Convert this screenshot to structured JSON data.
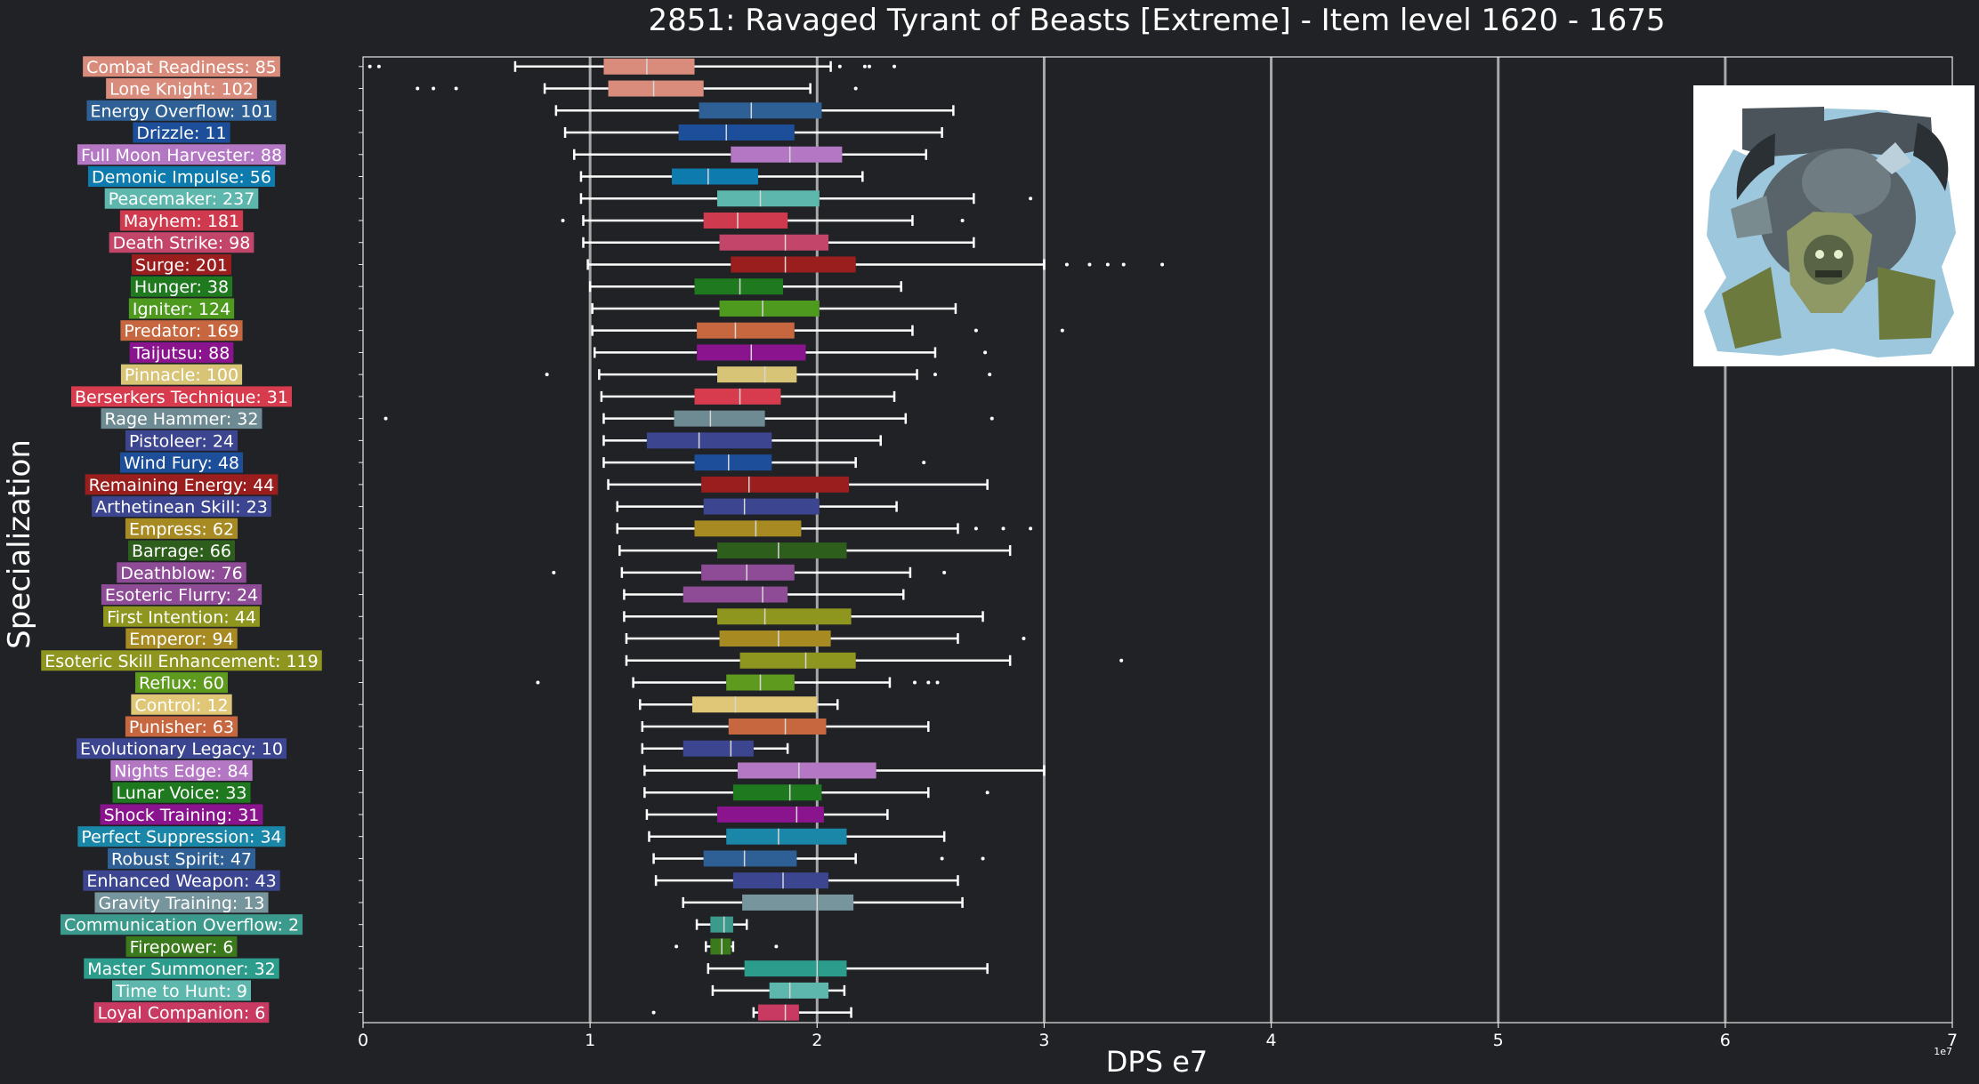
{
  "chart_data": {
    "type": "boxplot",
    "orientation": "horizontal",
    "title": "2851: Ravaged Tyrant of Beasts [Extreme] - Item level 1620 - 1675",
    "xlabel": "DPS e7",
    "ylabel": "Specialization",
    "x_offset_label": "1e7",
    "xlim": [
      0,
      7
    ],
    "xticks": [
      "0",
      "1",
      "2",
      "3",
      "4",
      "5",
      "6",
      "7"
    ],
    "grid": "vertical",
    "boss_icon": "tyrant-boss-portrait-icon",
    "categories": [
      {
        "label": "Combat Readiness: 85",
        "color": "#d98c7c",
        "whislo": 0.67,
        "q1": 1.06,
        "med": 1.25,
        "q3": 1.46,
        "whishi": 2.06,
        "fliers": [
          0.03,
          0.07,
          2.1,
          2.21,
          2.23,
          2.34
        ]
      },
      {
        "label": "Lone Knight: 102",
        "color": "#d98c7c",
        "whislo": 0.8,
        "q1": 1.08,
        "med": 1.28,
        "q3": 1.5,
        "whishi": 1.97,
        "fliers": [
          0.24,
          0.31,
          0.41,
          2.17
        ]
      },
      {
        "label": "Energy Overflow: 101",
        "color": "#2e5f95",
        "whislo": 0.85,
        "q1": 1.48,
        "med": 1.71,
        "q3": 2.02,
        "whishi": 2.6,
        "fliers": []
      },
      {
        "label": "Drizzle: 11",
        "color": "#1c4e9a",
        "whislo": 0.89,
        "q1": 1.39,
        "med": 1.6,
        "q3": 1.9,
        "whishi": 2.55,
        "fliers": []
      },
      {
        "label": "Full Moon Harvester: 88",
        "color": "#b477c4",
        "whislo": 0.93,
        "q1": 1.62,
        "med": 1.88,
        "q3": 2.11,
        "whishi": 2.48,
        "fliers": []
      },
      {
        "label": "Demonic Impulse: 56",
        "color": "#0d7bad",
        "whislo": 0.96,
        "q1": 1.36,
        "med": 1.52,
        "q3": 1.74,
        "whishi": 2.2,
        "fliers": []
      },
      {
        "label": "Peacemaker: 237",
        "color": "#5db7ad",
        "whislo": 0.96,
        "q1": 1.56,
        "med": 1.75,
        "q3": 2.01,
        "whishi": 2.69,
        "fliers": [
          2.94
        ]
      },
      {
        "label": "Mayhem: 181",
        "color": "#cf3a4e",
        "whislo": 0.97,
        "q1": 1.5,
        "med": 1.65,
        "q3": 1.87,
        "whishi": 2.42,
        "fliers": [
          0.88,
          2.64
        ]
      },
      {
        "label": "Death Strike: 98",
        "color": "#c4456a",
        "whislo": 0.97,
        "q1": 1.57,
        "med": 1.86,
        "q3": 2.05,
        "whishi": 2.69,
        "fliers": []
      },
      {
        "label": "Surge: 201",
        "color": "#9b1e1e",
        "whislo": 0.99,
        "q1": 1.62,
        "med": 1.86,
        "q3": 2.17,
        "whishi": 3.0,
        "fliers": [
          3.1,
          3.2,
          3.28,
          3.35,
          3.52
        ]
      },
      {
        "label": "Hunger: 38",
        "color": "#1f7a1f",
        "whislo": 1.0,
        "q1": 1.46,
        "med": 1.66,
        "q3": 1.85,
        "whishi": 2.37,
        "fliers": []
      },
      {
        "label": "Igniter: 124",
        "color": "#4e9a1e",
        "whislo": 1.01,
        "q1": 1.57,
        "med": 1.76,
        "q3": 2.01,
        "whishi": 2.61,
        "fliers": []
      },
      {
        "label": "Predator: 169",
        "color": "#c6673f",
        "whislo": 1.01,
        "q1": 1.47,
        "med": 1.64,
        "q3": 1.9,
        "whishi": 2.42,
        "fliers": [
          2.7,
          3.08
        ]
      },
      {
        "label": "Taijutsu: 88",
        "color": "#8a138e",
        "whislo": 1.02,
        "q1": 1.47,
        "med": 1.71,
        "q3": 1.95,
        "whishi": 2.52,
        "fliers": [
          2.74
        ]
      },
      {
        "label": "Pinnacle: 100",
        "color": "#d8c477",
        "whislo": 1.04,
        "q1": 1.56,
        "med": 1.77,
        "q3": 1.91,
        "whishi": 2.44,
        "fliers": [
          0.81,
          2.52,
          2.76
        ]
      },
      {
        "label": "Berserkers Technique: 31",
        "color": "#d63b4e",
        "whislo": 1.05,
        "q1": 1.46,
        "med": 1.66,
        "q3": 1.84,
        "whishi": 2.34,
        "fliers": []
      },
      {
        "label": "Rage Hammer: 32",
        "color": "#6e8a92",
        "whislo": 1.06,
        "q1": 1.37,
        "med": 1.53,
        "q3": 1.77,
        "whishi": 2.39,
        "fliers": [
          0.1,
          2.77
        ]
      },
      {
        "label": "Pistoleer: 24",
        "color": "#3c4590",
        "whislo": 1.06,
        "q1": 1.25,
        "med": 1.48,
        "q3": 1.8,
        "whishi": 2.28,
        "fliers": []
      },
      {
        "label": "Wind Fury: 48",
        "color": "#1c4e9a",
        "whislo": 1.06,
        "q1": 1.46,
        "med": 1.61,
        "q3": 1.8,
        "whishi": 2.17,
        "fliers": [
          2.47
        ]
      },
      {
        "label": "Remaining Energy: 44",
        "color": "#9b1e1e",
        "whislo": 1.08,
        "q1": 1.49,
        "med": 1.7,
        "q3": 2.14,
        "whishi": 2.75,
        "fliers": []
      },
      {
        "label": "Arthetinean Skill: 23",
        "color": "#3c4590",
        "whislo": 1.12,
        "q1": 1.5,
        "med": 1.68,
        "q3": 2.01,
        "whishi": 2.35,
        "fliers": []
      },
      {
        "label": "Empress: 62",
        "color": "#a88a22",
        "whislo": 1.12,
        "q1": 1.46,
        "med": 1.73,
        "q3": 1.93,
        "whishi": 2.62,
        "fliers": [
          2.7,
          2.82,
          2.94
        ]
      },
      {
        "label": "Barrage: 66",
        "color": "#2d5e1c",
        "whislo": 1.13,
        "q1": 1.56,
        "med": 1.83,
        "q3": 2.13,
        "whishi": 2.85,
        "fliers": []
      },
      {
        "label": "Deathblow: 76",
        "color": "#8e4b96",
        "whislo": 1.14,
        "q1": 1.49,
        "med": 1.69,
        "q3": 1.9,
        "whishi": 2.41,
        "fliers": [
          0.84,
          2.56
        ]
      },
      {
        "label": "Esoteric Flurry: 24",
        "color": "#8e4b96",
        "whislo": 1.15,
        "q1": 1.41,
        "med": 1.76,
        "q3": 1.87,
        "whishi": 2.38,
        "fliers": []
      },
      {
        "label": "First Intention: 44",
        "color": "#8e961f",
        "whislo": 1.15,
        "q1": 1.56,
        "med": 1.77,
        "q3": 2.15,
        "whishi": 2.73,
        "fliers": []
      },
      {
        "label": "Emperor: 94",
        "color": "#a88a22",
        "whislo": 1.16,
        "q1": 1.57,
        "med": 1.83,
        "q3": 2.06,
        "whishi": 2.62,
        "fliers": [
          2.91
        ]
      },
      {
        "label": "Esoteric Skill Enhancement: 119",
        "color": "#8e961f",
        "whislo": 1.16,
        "q1": 1.66,
        "med": 1.95,
        "q3": 2.17,
        "whishi": 2.85,
        "fliers": [
          3.34
        ]
      },
      {
        "label": "Reflux: 60",
        "color": "#5e9a1e",
        "whislo": 1.19,
        "q1": 1.6,
        "med": 1.75,
        "q3": 1.9,
        "whishi": 2.32,
        "fliers": [
          0.77,
          2.43,
          2.49,
          2.53
        ]
      },
      {
        "label": "Control: 12",
        "color": "#e0c777",
        "whislo": 1.22,
        "q1": 1.45,
        "med": 1.64,
        "q3": 2.0,
        "whishi": 2.09,
        "fliers": []
      },
      {
        "label": "Punisher: 63",
        "color": "#c6673f",
        "whislo": 1.23,
        "q1": 1.61,
        "med": 1.86,
        "q3": 2.04,
        "whishi": 2.49,
        "fliers": []
      },
      {
        "label": "Evolutionary Legacy: 10",
        "color": "#3c4590",
        "whislo": 1.23,
        "q1": 1.41,
        "med": 1.62,
        "q3": 1.72,
        "whishi": 1.87,
        "fliers": []
      },
      {
        "label": "Nights Edge: 84",
        "color": "#b477c4",
        "whislo": 1.24,
        "q1": 1.65,
        "med": 1.92,
        "q3": 2.26,
        "whishi": 3.0,
        "fliers": []
      },
      {
        "label": "Lunar Voice: 33",
        "color": "#1f7a1f",
        "whislo": 1.24,
        "q1": 1.63,
        "med": 1.88,
        "q3": 2.02,
        "whishi": 2.49,
        "fliers": [
          2.75
        ]
      },
      {
        "label": "Shock Training: 31",
        "color": "#8a138e",
        "whislo": 1.25,
        "q1": 1.56,
        "med": 1.91,
        "q3": 2.03,
        "whishi": 2.31,
        "fliers": []
      },
      {
        "label": "Perfect Suppression: 34",
        "color": "#1a86a8",
        "whislo": 1.26,
        "q1": 1.6,
        "med": 1.83,
        "q3": 2.13,
        "whishi": 2.56,
        "fliers": []
      },
      {
        "label": "Robust Spirit: 47",
        "color": "#2e5f95",
        "whislo": 1.28,
        "q1": 1.5,
        "med": 1.68,
        "q3": 1.91,
        "whishi": 2.17,
        "fliers": [
          2.55,
          2.73
        ]
      },
      {
        "label": "Enhanced Weapon: 43",
        "color": "#3c4590",
        "whislo": 1.29,
        "q1": 1.63,
        "med": 1.85,
        "q3": 2.05,
        "whishi": 2.62,
        "fliers": []
      },
      {
        "label": "Gravity Training: 13",
        "color": "#77959c",
        "whislo": 1.41,
        "q1": 1.67,
        "med": 2.0,
        "q3": 2.16,
        "whishi": 2.64,
        "fliers": []
      },
      {
        "label": "Communication Overflow: 2",
        "color": "#3b9a8c",
        "whislo": 1.47,
        "q1": 1.53,
        "med": 1.59,
        "q3": 1.63,
        "whishi": 1.69,
        "fliers": []
      },
      {
        "label": "Firepower: 6",
        "color": "#3b7a1c",
        "whislo": 1.51,
        "q1": 1.53,
        "med": 1.58,
        "q3": 1.62,
        "whishi": 1.63,
        "fliers": [
          1.38,
          1.82
        ]
      },
      {
        "label": "Master Summoner: 32",
        "color": "#2c9c8c",
        "whislo": 1.52,
        "q1": 1.68,
        "med": 2.0,
        "q3": 2.13,
        "whishi": 2.75,
        "fliers": []
      },
      {
        "label": "Time to Hunt: 9",
        "color": "#5db7ad",
        "whislo": 1.54,
        "q1": 1.79,
        "med": 1.88,
        "q3": 2.05,
        "whishi": 2.12,
        "fliers": []
      },
      {
        "label": "Loyal Companion: 6",
        "color": "#c93a63",
        "whislo": 1.72,
        "q1": 1.74,
        "med": 1.86,
        "q3": 1.92,
        "whishi": 2.15,
        "fliers": [
          1.28
        ]
      }
    ]
  }
}
